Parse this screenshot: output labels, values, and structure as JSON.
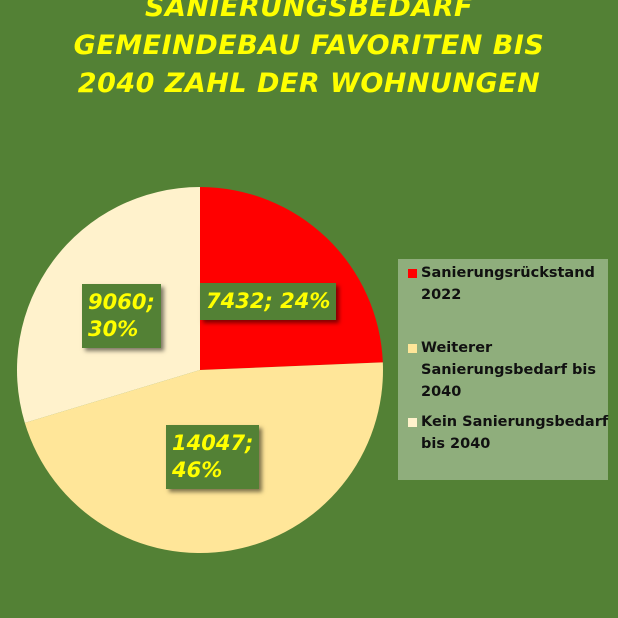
{
  "chart_data": {
    "type": "pie",
    "title_lines": [
      "SANIERUNGSBEDARF",
      "GEMEINDEBAU FAVORITEN BIS",
      "2040 ZAHL DER WOHNUNGEN"
    ],
    "categories": [
      "Sanierungsrückstand 2022",
      "Weiterer Sanierungsbedarf bis 2040",
      "Kein Sanierungsbedarf bis 2040"
    ],
    "values": [
      7432,
      14047,
      9060
    ],
    "percents": [
      24,
      46,
      30
    ],
    "data_labels": [
      "7432; 24%",
      "14047;\n46%",
      "9060;\n30%"
    ],
    "colors": [
      "#ff0000",
      "#ffe699",
      "#fff2cc"
    ],
    "legend_position": "right",
    "background": "#538135"
  }
}
